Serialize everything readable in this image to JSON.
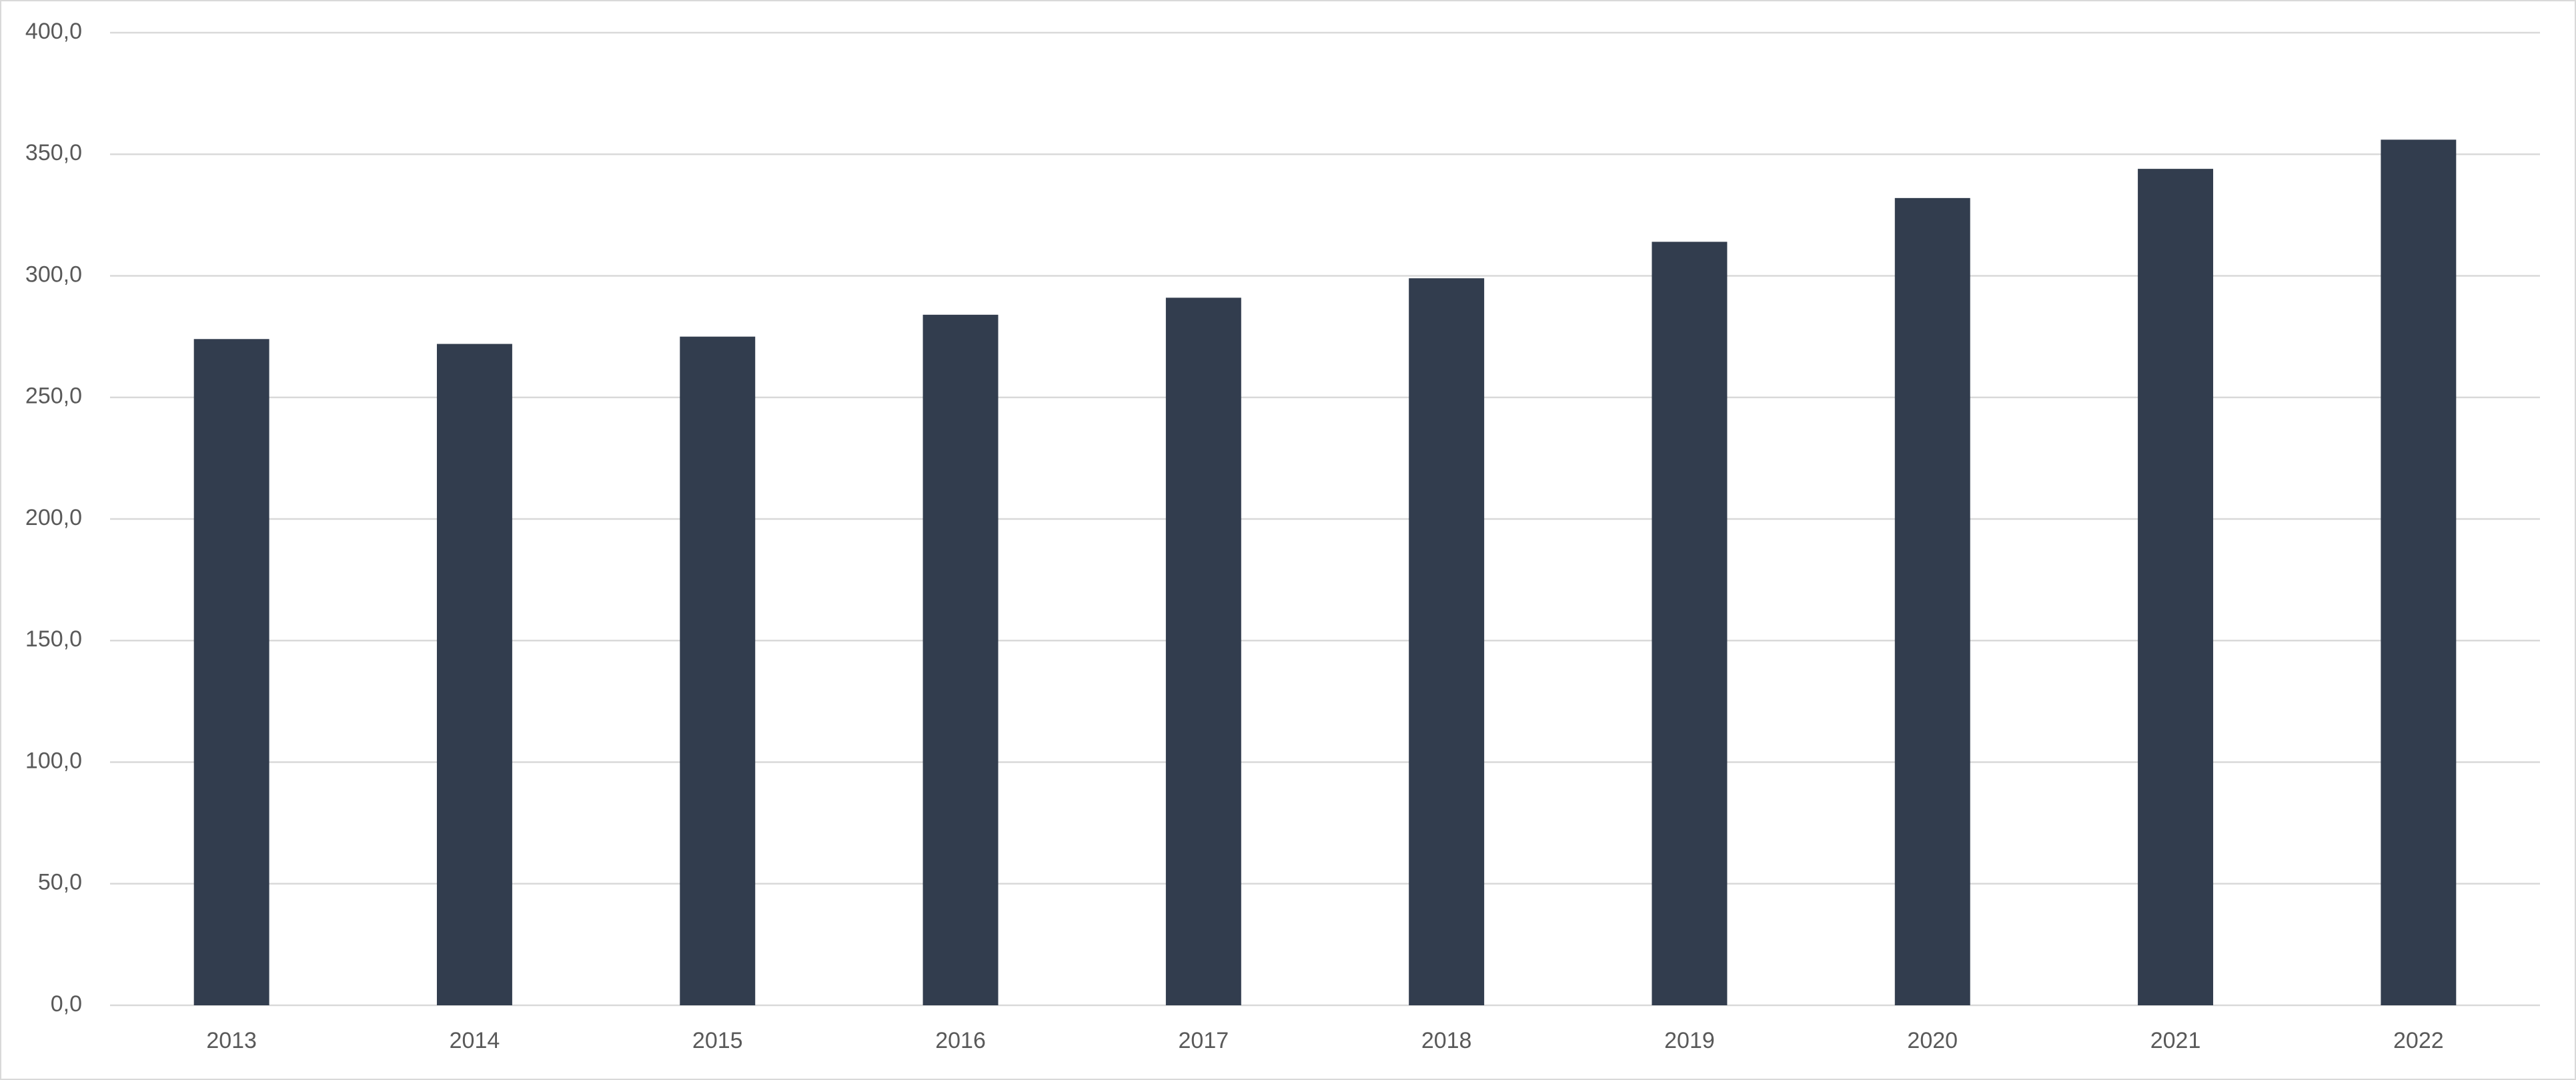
{
  "chart_data": {
    "type": "bar",
    "categories": [
      "2013",
      "2014",
      "2015",
      "2016",
      "2017",
      "2018",
      "2019",
      "2020",
      "2021",
      "2022"
    ],
    "values": [
      274,
      272,
      275,
      284,
      291,
      299,
      314,
      332,
      344,
      356
    ],
    "color": "#323d4e",
    "ylim": [
      0,
      400
    ],
    "yticks": [
      {
        "value": 0,
        "label": "0,0"
      },
      {
        "value": 50,
        "label": "50,0"
      },
      {
        "value": 100,
        "label": "100,0"
      },
      {
        "value": 150,
        "label": "150,0"
      },
      {
        "value": 200,
        "label": "200,0"
      },
      {
        "value": 250,
        "label": "250,0"
      },
      {
        "value": 300,
        "label": "300,0"
      },
      {
        "value": 350,
        "label": "350,0"
      },
      {
        "value": 400,
        "label": "400,0"
      }
    ],
    "grid": true
  }
}
